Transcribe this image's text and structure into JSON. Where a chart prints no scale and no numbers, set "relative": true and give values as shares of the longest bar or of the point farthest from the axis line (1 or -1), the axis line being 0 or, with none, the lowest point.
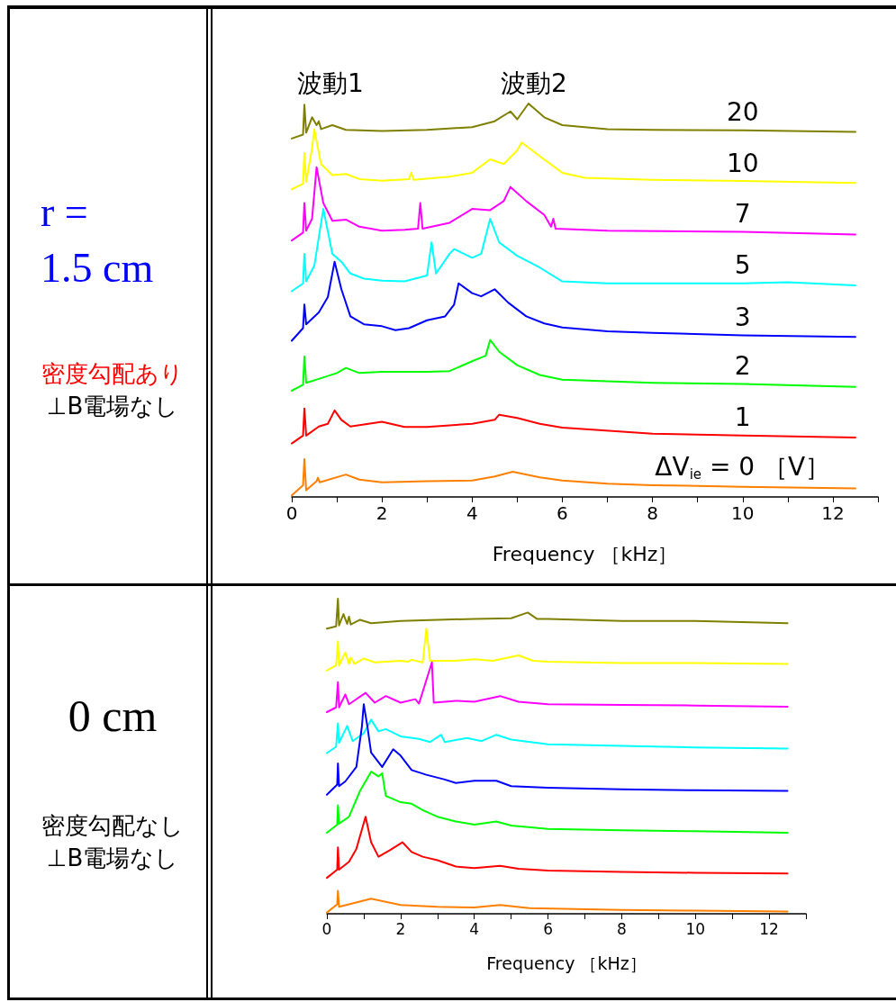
{
  "chart_data": [
    {
      "type": "line",
      "relative": true,
      "xlabel": "Frequency ［kHz］",
      "xlim": [
        0,
        13
      ],
      "xticks": [
        0,
        {
          "value": 1,
          "label": null
        },
        2,
        {
          "value": 3,
          "label": null
        },
        4,
        {
          "value": 5,
          "label": null
        },
        6,
        {
          "value": 7,
          "label": null
        },
        8,
        {
          "value": 9,
          "label": null
        },
        10,
        {
          "value": 11,
          "label": null
        },
        12,
        {
          "value": 13,
          "label": null
        }
      ],
      "legend": false,
      "grid": false,
      "annotations": [
        "波動1",
        "波動2",
        "r = 1.5 cm",
        "密度勾配あり",
        "⊥B電場なし"
      ],
      "series": [
        {
          "name": "20",
          "color": "#808000",
          "x": [
            0,
            0.25,
            0.28,
            0.32,
            0.45,
            0.55,
            0.6,
            0.65,
            0.9,
            1.2,
            2,
            3,
            4,
            4.5,
            4.85,
            5.0,
            5.25,
            5.6,
            6,
            7,
            8,
            10,
            12.5
          ],
          "values": [
            0.911,
            0.921,
            0.997,
            0.926,
            0.965,
            0.945,
            0.955,
            0.935,
            0.945,
            0.933,
            0.93,
            0.933,
            0.94,
            0.955,
            0.98,
            0.96,
            1.0,
            0.965,
            0.945,
            0.935,
            0.933,
            0.932,
            0.928
          ]
        },
        {
          "name": "10",
          "color": "#ffff00",
          "x": [
            0,
            0.25,
            0.28,
            0.32,
            0.45,
            0.5,
            0.65,
            0.9,
            1.2,
            1.5,
            2,
            2.6,
            2.65,
            2.7,
            3.5,
            4,
            4.4,
            4.7,
            5,
            5.1,
            5.5,
            6,
            6.5,
            8,
            10,
            12.5
          ],
          "values": [
            0.782,
            0.796,
            0.874,
            0.801,
            0.886,
            0.935,
            0.846,
            0.818,
            0.821,
            0.808,
            0.804,
            0.808,
            0.824,
            0.806,
            0.814,
            0.824,
            0.858,
            0.846,
            0.881,
            0.901,
            0.866,
            0.824,
            0.811,
            0.806,
            0.803,
            0.798
          ]
        },
        {
          "name": "7",
          "color": "#ff00ff",
          "x": [
            0,
            0.25,
            0.28,
            0.32,
            0.45,
            0.55,
            0.7,
            0.9,
            1.2,
            1.5,
            2,
            2.5,
            2.8,
            2.85,
            2.9,
            3.5,
            4,
            4.4,
            4.7,
            4.85,
            5.2,
            5.6,
            5.75,
            5.8,
            5.85,
            7,
            10,
            12.5
          ],
          "values": [
            0.652,
            0.672,
            0.747,
            0.677,
            0.707,
            0.838,
            0.747,
            0.702,
            0.705,
            0.687,
            0.677,
            0.679,
            0.682,
            0.747,
            0.682,
            0.697,
            0.732,
            0.729,
            0.752,
            0.788,
            0.752,
            0.717,
            0.687,
            0.707,
            0.682,
            0.677,
            0.674,
            0.667
          ]
        },
        {
          "name": "5",
          "color": "#00ffff",
          "x": [
            0,
            0.25,
            0.28,
            0.32,
            0.5,
            0.7,
            0.9,
            1.1,
            1.3,
            1.6,
            2,
            2.5,
            3,
            3.1,
            3.2,
            3.5,
            3.6,
            4,
            4.2,
            4.4,
            4.6,
            5,
            5.5,
            6,
            7,
            8,
            10,
            11,
            12.5
          ],
          "values": [
            0.523,
            0.543,
            0.618,
            0.548,
            0.588,
            0.732,
            0.618,
            0.598,
            0.568,
            0.555,
            0.55,
            0.548,
            0.563,
            0.647,
            0.568,
            0.618,
            0.63,
            0.608,
            0.618,
            0.707,
            0.647,
            0.613,
            0.583,
            0.548,
            0.543,
            0.543,
            0.543,
            0.546,
            0.538
          ]
        },
        {
          "name": "3",
          "color": "#0000ff",
          "x": [
            0,
            0.25,
            0.28,
            0.32,
            0.6,
            0.8,
            0.95,
            1.1,
            1.3,
            1.6,
            2,
            2.3,
            2.6,
            3,
            3.4,
            3.6,
            3.7,
            4,
            4.2,
            4.5,
            4.8,
            5.2,
            5.6,
            6,
            7,
            8,
            10,
            12.5
          ],
          "values": [
            0.397,
            0.429,
            0.489,
            0.439,
            0.469,
            0.508,
            0.598,
            0.528,
            0.459,
            0.439,
            0.434,
            0.424,
            0.429,
            0.449,
            0.459,
            0.489,
            0.543,
            0.518,
            0.51,
            0.528,
            0.494,
            0.459,
            0.441,
            0.431,
            0.421,
            0.417,
            0.411,
            0.407
          ]
        },
        {
          "name": "2",
          "color": "#00ff00",
          "x": [
            0,
            0.25,
            0.28,
            0.32,
            0.6,
            1,
            1.2,
            1.5,
            2,
            3,
            3.5,
            4,
            4.3,
            4.4,
            4.6,
            5,
            5.5,
            6,
            8,
            10,
            12.5
          ],
          "values": [
            0.27,
            0.285,
            0.357,
            0.29,
            0.3,
            0.315,
            0.328,
            0.315,
            0.318,
            0.318,
            0.32,
            0.345,
            0.359,
            0.399,
            0.369,
            0.335,
            0.31,
            0.298,
            0.29,
            0.287,
            0.28
          ]
        },
        {
          "name": "1",
          "color": "#ff0000",
          "x": [
            0,
            0.25,
            0.28,
            0.32,
            0.6,
            0.8,
            0.95,
            1.1,
            1.3,
            2,
            2.5,
            3,
            4,
            4.5,
            4.6,
            5,
            5.5,
            6,
            8,
            10,
            12.5
          ],
          "values": [
            0.136,
            0.156,
            0.225,
            0.156,
            0.179,
            0.186,
            0.22,
            0.196,
            0.179,
            0.191,
            0.178,
            0.178,
            0.186,
            0.196,
            0.209,
            0.201,
            0.186,
            0.176,
            0.161,
            0.156,
            0.151
          ]
        },
        {
          "name": "ΔV$_{ie}$ = 0 ［V］",
          "color": "#ff8000",
          "x": [
            0,
            0.25,
            0.28,
            0.32,
            0.55,
            0.58,
            0.62,
            1.2,
            1.5,
            2,
            3,
            4,
            4.5,
            4.9,
            5.5,
            6,
            7,
            8,
            10,
            12.5
          ],
          "values": [
            0.004,
            0.03,
            0.096,
            0.017,
            0.04,
            0.049,
            0.037,
            0.057,
            0.044,
            0.037,
            0.04,
            0.042,
            0.052,
            0.064,
            0.05,
            0.042,
            0.034,
            0.03,
            0.026,
            0.022
          ]
        }
      ]
    },
    {
      "type": "line",
      "relative": true,
      "xlabel": "Frequency ［kHz］",
      "xlim": [
        0,
        13
      ],
      "xticks": [
        0,
        {
          "value": 1,
          "label": null
        },
        2,
        {
          "value": 3,
          "label": null
        },
        4,
        {
          "value": 5,
          "label": null
        },
        6,
        {
          "value": 7,
          "label": null
        },
        8,
        {
          "value": 9,
          "label": null
        },
        10,
        {
          "value": 11,
          "label": null
        },
        12,
        {
          "value": 13,
          "label": null
        }
      ],
      "legend": false,
      "grid": false,
      "annotations": [
        "0 cm",
        "密度勾配なし",
        "⊥B電場なし"
      ],
      "series": [
        {
          "color": "#808000",
          "x": [
            0,
            0.25,
            0.3,
            0.33,
            0.45,
            0.55,
            0.6,
            0.65,
            0.9,
            1.2,
            2,
            3,
            4,
            5,
            5.45,
            5.7,
            6,
            8,
            10,
            12.5
          ],
          "values": [
            0.905,
            0.912,
            1.0,
            0.915,
            0.951,
            0.92,
            0.943,
            0.918,
            0.933,
            0.922,
            0.929,
            0.933,
            0.936,
            0.938,
            0.956,
            0.936,
            0.936,
            0.929,
            0.929,
            0.922
          ]
        },
        {
          "color": "#ffff00",
          "x": [
            0,
            0.25,
            0.3,
            0.33,
            0.5,
            0.6,
            0.65,
            0.75,
            1,
            1.3,
            2,
            2.2,
            2.3,
            2.6,
            2.7,
            2.8,
            3.5,
            4,
            4.5,
            5.2,
            5.6,
            6,
            8,
            10,
            12.5
          ],
          "values": [
            0.772,
            0.788,
            0.864,
            0.788,
            0.829,
            0.793,
            0.813,
            0.793,
            0.81,
            0.798,
            0.803,
            0.8,
            0.806,
            0.798,
            0.905,
            0.803,
            0.803,
            0.808,
            0.803,
            0.82,
            0.803,
            0.8,
            0.796,
            0.796,
            0.793
          ]
        },
        {
          "color": "#ff00ff",
          "x": [
            0,
            0.25,
            0.3,
            0.33,
            0.5,
            0.6,
            1.05,
            1.3,
            1.6,
            2,
            2.4,
            2.5,
            2.85,
            2.9,
            3.5,
            4,
            4.7,
            5.2,
            6,
            8,
            10,
            12.5
          ],
          "values": [
            0.64,
            0.655,
            0.735,
            0.655,
            0.696,
            0.665,
            0.701,
            0.67,
            0.691,
            0.67,
            0.681,
            0.667,
            0.798,
            0.67,
            0.676,
            0.673,
            0.691,
            0.673,
            0.665,
            0.663,
            0.661,
            0.657
          ]
        },
        {
          "color": "#00ffff",
          "x": [
            0,
            0.25,
            0.3,
            0.33,
            0.55,
            0.7,
            1,
            1.2,
            1.4,
            1.6,
            2,
            2.5,
            2.8,
            3.1,
            3.2,
            3.8,
            4.2,
            4.6,
            5,
            6,
            8,
            10,
            12.5
          ],
          "values": [
            0.51,
            0.53,
            0.604,
            0.543,
            0.596,
            0.548,
            0.573,
            0.616,
            0.579,
            0.586,
            0.563,
            0.555,
            0.545,
            0.568,
            0.545,
            0.558,
            0.548,
            0.568,
            0.553,
            0.538,
            0.533,
            0.528,
            0.524
          ]
        },
        {
          "color": "#0000ff",
          "x": [
            0,
            0.28,
            0.3,
            0.33,
            0.5,
            0.8,
            0.95,
            1.0,
            1.1,
            1.2,
            1.5,
            1.8,
            2,
            2.3,
            2.7,
            3.2,
            3.5,
            4,
            4.6,
            5,
            6,
            8,
            10,
            12.5
          ],
          "values": [
            0.378,
            0.41,
            0.477,
            0.405,
            0.42,
            0.466,
            0.594,
            0.665,
            0.594,
            0.512,
            0.466,
            0.522,
            0.502,
            0.456,
            0.441,
            0.426,
            0.415,
            0.422,
            0.422,
            0.405,
            0.4,
            0.395,
            0.392,
            0.39
          ]
        },
        {
          "color": "#00ff00",
          "x": [
            0,
            0.28,
            0.3,
            0.33,
            0.6,
            0.9,
            1.2,
            1.4,
            1.5,
            1.6,
            2,
            2.3,
            2.6,
            3,
            3.5,
            4,
            4.6,
            5,
            6,
            8,
            10,
            12.5
          ],
          "values": [
            0.257,
            0.283,
            0.344,
            0.286,
            0.308,
            0.39,
            0.451,
            0.436,
            0.446,
            0.374,
            0.354,
            0.349,
            0.329,
            0.308,
            0.293,
            0.283,
            0.293,
            0.28,
            0.269,
            0.265,
            0.262,
            0.257
          ]
        },
        {
          "color": "#ff0000",
          "x": [
            0,
            0.28,
            0.3,
            0.33,
            0.6,
            0.8,
            1.05,
            1.2,
            1.4,
            1.7,
            2.05,
            2.3,
            2.6,
            3,
            3.5,
            4,
            4.7,
            5.2,
            6,
            8,
            10,
            12.5
          ],
          "values": [
            0.114,
            0.14,
            0.211,
            0.14,
            0.165,
            0.206,
            0.308,
            0.227,
            0.181,
            0.201,
            0.227,
            0.196,
            0.181,
            0.17,
            0.15,
            0.145,
            0.152,
            0.143,
            0.137,
            0.133,
            0.13,
            0.128
          ]
        },
        {
          "color": "#ff8000",
          "x": [
            0,
            0.28,
            0.3,
            0.33,
            0.6,
            1.2,
            2,
            3,
            4,
            4.7,
            5.5,
            8,
            10,
            12.5
          ],
          "values": [
            0.004,
            0.03,
            0.073,
            0.022,
            0.03,
            0.048,
            0.028,
            0.022,
            0.02,
            0.028,
            0.018,
            0.012,
            0.01,
            0.007
          ]
        }
      ]
    }
  ]
}
